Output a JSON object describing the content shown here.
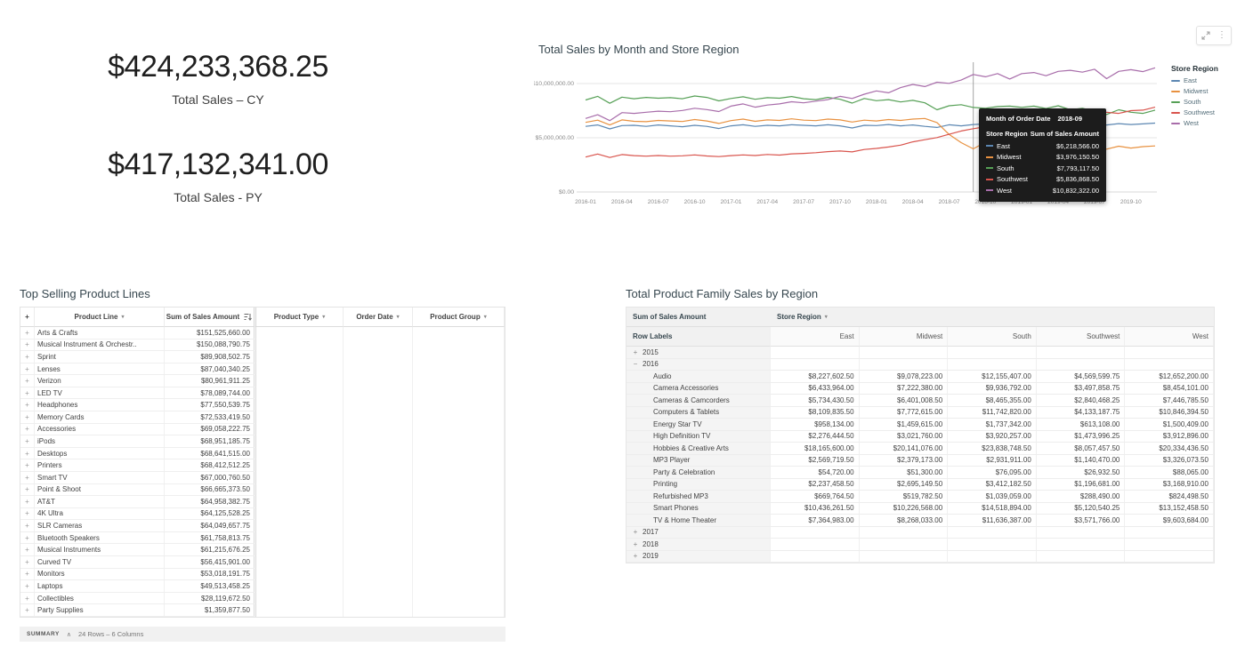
{
  "kpis": [
    {
      "value": "$424,233,368.25",
      "label": "Total Sales – CY"
    },
    {
      "value": "$417,132,341.00",
      "label": "Total Sales - PY"
    }
  ],
  "chart": {
    "title": "Total Sales by Month and Store Region",
    "legend_title": "Store Region"
  },
  "chart_data": {
    "type": "line",
    "title": "Total Sales by Month and Store Region",
    "xlabel": "Month of Order Date",
    "ylabel": "Sum of Sales Amount",
    "unit_note": "series values in millions USD, estimated from gridlines",
    "ylim_millions": [
      0,
      11.8
    ],
    "grid": "horizontal only",
    "legend_position": "right",
    "crosshair_index": 32,
    "y_ticks": [
      {
        "value": 0,
        "label": "$0.00"
      },
      {
        "value": 5,
        "label": "$5,000,000.00"
      },
      {
        "value": 10,
        "label": "$10,000,000.00"
      }
    ],
    "x": [
      "2016-01",
      "2016-02",
      "2016-03",
      "2016-04",
      "2016-05",
      "2016-06",
      "2016-07",
      "2016-08",
      "2016-09",
      "2016-10",
      "2016-11",
      "2016-12",
      "2017-01",
      "2017-02",
      "2017-03",
      "2017-04",
      "2017-05",
      "2017-06",
      "2017-07",
      "2017-08",
      "2017-09",
      "2017-10",
      "2017-11",
      "2017-12",
      "2018-01",
      "2018-02",
      "2018-03",
      "2018-04",
      "2018-05",
      "2018-06",
      "2018-07",
      "2018-08",
      "2018-09",
      "2018-10",
      "2018-11",
      "2018-12",
      "2019-01",
      "2019-02",
      "2019-03",
      "2019-04",
      "2019-05",
      "2019-06",
      "2019-07",
      "2019-08",
      "2019-09",
      "2019-10",
      "2019-11",
      "2019-12"
    ],
    "series": [
      {
        "name": "East",
        "color": "#5c87b2",
        "values": [
          6.05,
          6.18,
          5.82,
          6.12,
          6.15,
          6.05,
          6.18,
          6.1,
          6.02,
          6.15,
          6.05,
          5.85,
          6.1,
          6.2,
          6.05,
          6.15,
          6.1,
          6.2,
          6.15,
          6.1,
          6.2,
          6.1,
          5.9,
          6.15,
          6.12,
          6.22,
          6.1,
          6.18,
          6.05,
          5.95,
          6.2,
          6.1,
          6.2186,
          6.28,
          6.32,
          6.22,
          6.38,
          6.22,
          6.3,
          6.26,
          6.2,
          6.32,
          6.24,
          6.18,
          6.3,
          6.22,
          6.28,
          6.35
        ]
      },
      {
        "name": "Midwest",
        "color": "#e89140",
        "values": [
          6.42,
          6.62,
          6.18,
          6.65,
          6.52,
          6.48,
          6.6,
          6.55,
          6.5,
          6.68,
          6.55,
          6.32,
          6.58,
          6.72,
          6.52,
          6.65,
          6.6,
          6.75,
          6.62,
          6.58,
          6.72,
          6.65,
          6.45,
          6.62,
          6.55,
          6.68,
          6.6,
          6.72,
          6.78,
          6.4,
          5.3,
          4.55,
          3.9762,
          4.6,
          4.48,
          4.62,
          4.5,
          4.38,
          4.45,
          4.28,
          4.18,
          4.32,
          4.1,
          3.95,
          4.22,
          4.05,
          4.18,
          4.25
        ]
      },
      {
        "name": "South",
        "color": "#56a056",
        "values": [
          8.48,
          8.82,
          8.18,
          8.75,
          8.6,
          8.72,
          8.65,
          8.7,
          8.6,
          8.85,
          8.72,
          8.4,
          8.62,
          8.78,
          8.55,
          8.7,
          8.65,
          8.8,
          8.6,
          8.52,
          8.72,
          8.55,
          8.2,
          8.62,
          8.42,
          8.52,
          8.3,
          8.45,
          8.22,
          7.58,
          7.95,
          8.05,
          7.7931,
          7.72,
          7.88,
          7.92,
          7.8,
          7.92,
          7.7,
          7.95,
          7.58,
          7.72,
          7.45,
          7.15,
          7.58,
          7.35,
          7.25,
          7.55
        ]
      },
      {
        "name": "Southwest",
        "color": "#d9544d",
        "values": [
          3.22,
          3.5,
          3.18,
          3.45,
          3.35,
          3.3,
          3.36,
          3.3,
          3.34,
          3.42,
          3.32,
          3.26,
          3.35,
          3.42,
          3.36,
          3.46,
          3.4,
          3.52,
          3.56,
          3.62,
          3.72,
          3.78,
          3.7,
          3.92,
          4.02,
          4.15,
          4.32,
          4.62,
          4.82,
          5.02,
          5.32,
          5.62,
          5.8369,
          6.02,
          6.12,
          6.22,
          6.32,
          6.46,
          6.4,
          6.62,
          6.82,
          7.02,
          7.12,
          7.35,
          7.25,
          7.5,
          7.55,
          7.82
        ]
      },
      {
        "name": "West",
        "color": "#a86daa",
        "values": [
          6.78,
          7.12,
          6.58,
          7.32,
          7.25,
          7.35,
          7.45,
          7.4,
          7.52,
          7.72,
          7.6,
          7.42,
          7.92,
          8.12,
          7.82,
          8.02,
          8.12,
          8.32,
          8.22,
          8.38,
          8.52,
          8.82,
          8.62,
          9.02,
          9.32,
          9.15,
          9.62,
          9.92,
          9.72,
          10.12,
          10.02,
          10.32,
          10.8323,
          10.62,
          10.92,
          10.42,
          10.92,
          11.02,
          10.72,
          11.12,
          11.22,
          11.05,
          11.32,
          10.45,
          11.12,
          11.28,
          11.1,
          11.45
        ]
      }
    ]
  },
  "tooltip": {
    "title_label": "Month of Order Date",
    "title_value": "2018-09",
    "col1": "Store Region",
    "col2": "Sum of Sales Amount",
    "rows": [
      {
        "region": "East",
        "value": "$6,218,566.00",
        "color": "#5c87b2"
      },
      {
        "region": "Midwest",
        "value": "$3,976,150.50",
        "color": "#e89140"
      },
      {
        "region": "South",
        "value": "$7,793,117.50",
        "color": "#56a056"
      },
      {
        "region": "Southwest",
        "value": "$5,836,868.50",
        "color": "#d9544d"
      },
      {
        "region": "West",
        "value": "$10,832,322.00",
        "color": "#a86daa"
      }
    ]
  },
  "toolbar": {
    "expand_icon": "expand",
    "menu_icon": "kebab"
  },
  "table": {
    "title": "Top Selling Product Lines",
    "corner": "+",
    "columns": [
      {
        "label": "Product Line",
        "caret": true
      },
      {
        "label": "Sum of Sales Amount",
        "sort": true
      },
      {
        "label": "Product Type",
        "caret": true
      },
      {
        "label": "Order Date",
        "caret": true
      },
      {
        "label": "Product Group",
        "caret": true
      }
    ],
    "rows": [
      {
        "name": "Arts & Crafts",
        "value": "$151,525,660.00"
      },
      {
        "name": "Musical Instrument & Orchestr..",
        "value": "$150,088,790.75"
      },
      {
        "name": "Sprint",
        "value": "$89,908,502.75"
      },
      {
        "name": "Lenses",
        "value": "$87,040,340.25"
      },
      {
        "name": "Verizon",
        "value": "$80,961,911.25"
      },
      {
        "name": "LED TV",
        "value": "$78,089,744.00"
      },
      {
        "name": "Headphones",
        "value": "$77,550,539.75"
      },
      {
        "name": "Memory Cards",
        "value": "$72,533,419.50"
      },
      {
        "name": "Accessories",
        "value": "$69,058,222.75"
      },
      {
        "name": "iPods",
        "value": "$68,951,185.75"
      },
      {
        "name": "Desktops",
        "value": "$68,641,515.00"
      },
      {
        "name": "Printers",
        "value": "$68,412,512.25"
      },
      {
        "name": "Smart TV",
        "value": "$67,000,760.50"
      },
      {
        "name": "Point & Shoot",
        "value": "$66,665,373.50"
      },
      {
        "name": "AT&T",
        "value": "$64,958,382.75"
      },
      {
        "name": "4K Ultra",
        "value": "$64,125,528.25"
      },
      {
        "name": "SLR Cameras",
        "value": "$64,049,657.75"
      },
      {
        "name": "Bluetooth Speakers",
        "value": "$61,758,813.75"
      },
      {
        "name": "Musical Instruments",
        "value": "$61,215,676.25"
      },
      {
        "name": "Curved TV",
        "value": "$56,415,901.00"
      },
      {
        "name": "Monitors",
        "value": "$53,018,191.75"
      },
      {
        "name": "Laptops",
        "value": "$49,513,458.25"
      },
      {
        "name": "Collectibles",
        "value": "$28,119,672.50"
      },
      {
        "name": "Party Supplies",
        "value": "$1,359,877.50"
      }
    ],
    "summary": {
      "label": "SUMMARY",
      "caret": "∧",
      "text": "24 Rows – 6 Columns"
    }
  },
  "pivot": {
    "title": "Total Product Family Sales by Region",
    "measure_label": "Sum of Sales Amount",
    "column_group": "Store Region",
    "row_labels_header": "Row Labels",
    "regions": [
      "East",
      "Midwest",
      "South",
      "Southwest",
      "West"
    ],
    "rows": [
      {
        "t": "year",
        "label": "2015",
        "tog": "+",
        "cells": [
          "",
          "",
          "",
          "",
          ""
        ]
      },
      {
        "t": "year",
        "label": "2016",
        "tog": "−",
        "cells": [
          "",
          "",
          "",
          "",
          ""
        ]
      },
      {
        "t": "detail",
        "label": "Audio",
        "cells": [
          "$8,227,602.50",
          "$9,078,223.00",
          "$12,155,407.00",
          "$4,569,599.75",
          "$12,652,200.00"
        ]
      },
      {
        "t": "detail",
        "label": "Camera Accessories",
        "cells": [
          "$6,433,964.00",
          "$7,222,380.00",
          "$9,936,792.00",
          "$3,497,858.75",
          "$8,454,101.00"
        ]
      },
      {
        "t": "detail",
        "label": "Cameras & Camcorders",
        "cells": [
          "$5,734,430.50",
          "$6,401,008.50",
          "$8,465,355.00",
          "$2,840,468.25",
          "$7,446,785.50"
        ]
      },
      {
        "t": "detail",
        "label": "Computers & Tablets",
        "cells": [
          "$8,109,835.50",
          "$7,772,615.00",
          "$11,742,820.00",
          "$4,133,187.75",
          "$10,846,394.50"
        ]
      },
      {
        "t": "detail",
        "label": "Energy Star TV",
        "cells": [
          "$958,134.00",
          "$1,459,615.00",
          "$1,737,342.00",
          "$613,108.00",
          "$1,500,409.00"
        ]
      },
      {
        "t": "detail",
        "label": "High Definition TV",
        "cells": [
          "$2,276,444.50",
          "$3,021,760.00",
          "$3,920,257.00",
          "$1,473,996.25",
          "$3,912,896.00"
        ]
      },
      {
        "t": "detail",
        "label": "Hobbies & Creative Arts",
        "cells": [
          "$18,165,600.00",
          "$20,141,076.00",
          "$23,838,748.50",
          "$8,057,457.50",
          "$20,334,436.50"
        ]
      },
      {
        "t": "detail",
        "label": "MP3 Player",
        "cells": [
          "$2,569,719.50",
          "$2,379,173.00",
          "$2,931,911.00",
          "$1,140,470.00",
          "$3,326,073.50"
        ]
      },
      {
        "t": "detail",
        "label": "Party & Celebration",
        "cells": [
          "$54,720.00",
          "$51,300.00",
          "$76,095.00",
          "$26,932.50",
          "$88,065.00"
        ]
      },
      {
        "t": "detail",
        "label": "Printing",
        "cells": [
          "$2,237,458.50",
          "$2,695,149.50",
          "$3,412,182.50",
          "$1,196,681.00",
          "$3,168,910.00"
        ]
      },
      {
        "t": "detail",
        "label": "Refurbished MP3",
        "cells": [
          "$669,764.50",
          "$519,782.50",
          "$1,039,059.00",
          "$288,490.00",
          "$824,498.50"
        ]
      },
      {
        "t": "detail",
        "label": "Smart Phones",
        "cells": [
          "$10,436,261.50",
          "$10,226,568.00",
          "$14,518,894.00",
          "$5,120,540.25",
          "$13,152,458.50"
        ]
      },
      {
        "t": "detail",
        "label": "TV & Home Theater",
        "cells": [
          "$7,364,983.00",
          "$8,268,033.00",
          "$11,636,387.00",
          "$3,571,766.00",
          "$9,603,684.00"
        ]
      },
      {
        "t": "year",
        "label": "2017",
        "tog": "+",
        "cells": [
          "",
          "",
          "",
          "",
          ""
        ]
      },
      {
        "t": "year",
        "label": "2018",
        "tog": "+",
        "cells": [
          "",
          "",
          "",
          "",
          ""
        ]
      },
      {
        "t": "year",
        "label": "2019",
        "tog": "+",
        "cells": [
          "",
          "",
          "",
          "",
          ""
        ]
      }
    ]
  }
}
